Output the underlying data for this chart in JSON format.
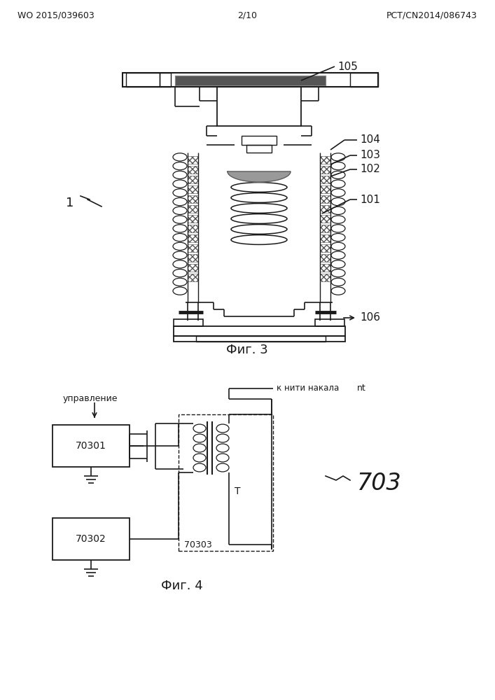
{
  "bg_color": "#ffffff",
  "header_left": "WO 2015/039603",
  "header_right": "PCT/CN2014/086743",
  "header_center": "2/10",
  "fig3_caption": "Фиг. 3",
  "fig4_caption": "Фиг. 4",
  "label_1": "1",
  "label_101": "101",
  "label_102": "102",
  "label_103": "103",
  "label_104": "104",
  "label_105": "105",
  "label_106": "106",
  "label_703": "703",
  "label_70301": "70301",
  "label_70302": "70302",
  "label_70303": "70303",
  "label_T": "T",
  "label_управление": "управление",
  "label_к_нити": "к нити накала",
  "label_nt": "nt",
  "line_color": "#1a1a1a",
  "text_color": "#1a1a1a"
}
